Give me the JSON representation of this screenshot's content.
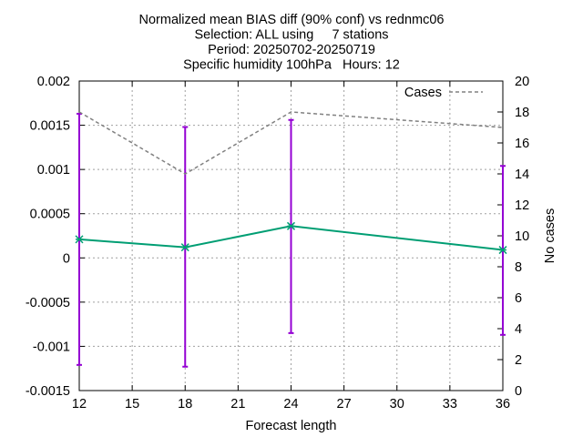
{
  "chart_data": {
    "type": "line",
    "title_lines": [
      "Normalized mean BIAS diff (90% conf) vs rednmc06",
      "Selection: ALL using     7 stations",
      "Period: 20250702-20250719",
      "Specific humidity 100hPa   Hours: 12"
    ],
    "xlabel": "Forecast length",
    "ylabel": "",
    "y2label": "No cases",
    "xlim": [
      12,
      36
    ],
    "ylim": [
      -0.0015,
      0.002
    ],
    "y2lim": [
      0,
      20
    ],
    "xticks": [
      "12",
      "15",
      "18",
      "21",
      "24",
      "27",
      "30",
      "33",
      "36"
    ],
    "yticks": [
      "-0.0015",
      "-0.001",
      "-0.0005",
      "0",
      "0.0005",
      "0.001",
      "0.0015",
      "0.002"
    ],
    "y2ticks": [
      "0",
      "2",
      "4",
      "6",
      "8",
      "10",
      "12",
      "14",
      "16",
      "18",
      "20"
    ],
    "grid": true,
    "legend_position": "top-right",
    "series": [
      {
        "name": "",
        "axis": "left",
        "color": "#009e73",
        "marker": "asterisk",
        "x": [
          12,
          18,
          24,
          36
        ],
        "y": [
          0.00021,
          0.00012,
          0.00036,
          9e-05
        ],
        "error_low": [
          -0.00121,
          -0.00123,
          -0.00085,
          -0.00087
        ],
        "error_high": [
          0.00163,
          0.00148,
          0.00156,
          0.00104
        ],
        "error_color": "#9400d3"
      },
      {
        "name": "Cases",
        "axis": "right",
        "color": "#808080",
        "dash": true,
        "x": [
          12,
          18,
          24,
          36
        ],
        "y": [
          18,
          14,
          18,
          17
        ]
      }
    ]
  }
}
